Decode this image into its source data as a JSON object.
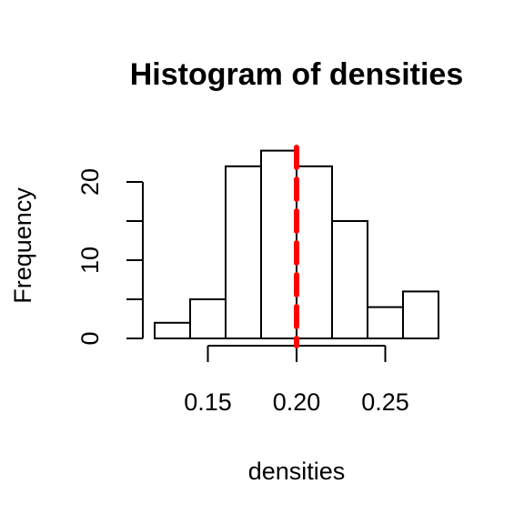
{
  "chart_data": {
    "type": "bar",
    "title": "Histogram of densities",
    "xlabel": "densities",
    "ylabel": "Frequency",
    "bins": [
      {
        "from": 0.12,
        "to": 0.14,
        "count": 2
      },
      {
        "from": 0.14,
        "to": 0.16,
        "count": 5
      },
      {
        "from": 0.16,
        "to": 0.18,
        "count": 22
      },
      {
        "from": 0.18,
        "to": 0.2,
        "count": 24
      },
      {
        "from": 0.2,
        "to": 0.22,
        "count": 22
      },
      {
        "from": 0.22,
        "to": 0.24,
        "count": 15
      },
      {
        "from": 0.24,
        "to": 0.26,
        "count": 4
      },
      {
        "from": 0.26,
        "to": 0.28,
        "count": 6
      }
    ],
    "x_ticks": [
      0.15,
      0.2,
      0.25
    ],
    "x_tick_labels": [
      "0.15",
      "0.20",
      "0.25"
    ],
    "y_ticks": [
      0,
      5,
      10,
      15,
      20
    ],
    "y_tick_labels": [
      "0",
      "10",
      "20"
    ],
    "y_labeled_ticks": [
      0,
      10,
      20
    ],
    "xlim": [
      0.12,
      0.28
    ],
    "ylim": [
      0,
      24
    ],
    "reference_line": {
      "x": 0.2,
      "color": "#ff0000",
      "style": "dashed"
    },
    "bar_fill": "#ffffff",
    "bar_stroke": "#000000",
    "grid": false,
    "legend": "none"
  }
}
